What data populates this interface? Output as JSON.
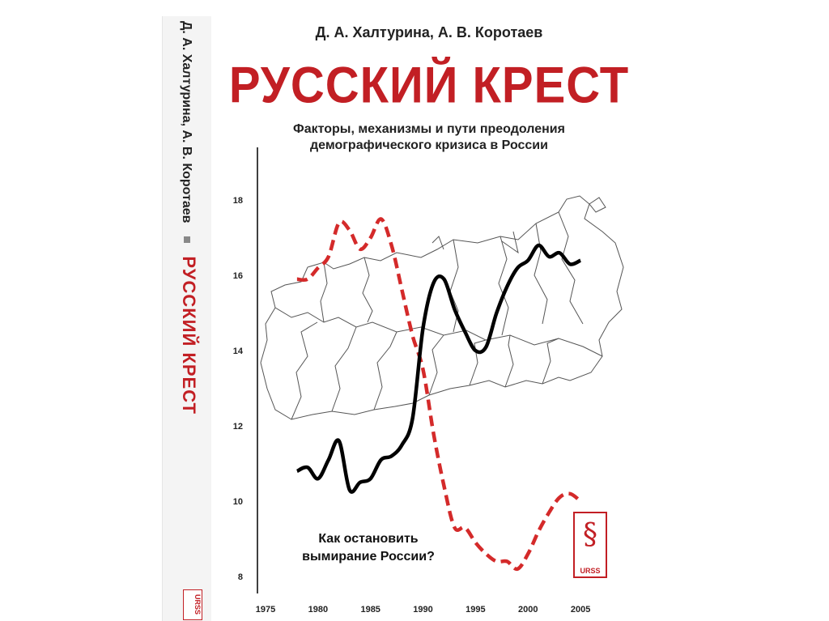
{
  "cover": {
    "authors": "Д. А. Халтурина, А. В. Коротаев",
    "title": "РУССКИЙ КРЕСТ",
    "subtitle_line1": "Факторы, механизмы и пути преодоления",
    "subtitle_line2": "демографического кризиса в России",
    "bottom_line1": "Как остановить",
    "bottom_line2": "вымирание России?",
    "publisher": "URSS",
    "publisher_glyph": "§"
  },
  "spine": {
    "authors": "Д. А. Халтурина, А. В. Коротаев",
    "title": "РУССКИЙ КРЕСТ",
    "publisher": "URSS"
  },
  "colors": {
    "title": "#c21f24",
    "dashed_series": "#d42a2a",
    "solid_series": "#000000",
    "map_outline": "#555555"
  },
  "chart_data": {
    "type": "line",
    "xlim": [
      1975,
      2008
    ],
    "ylim": [
      8,
      18.5
    ],
    "x_ticks": [
      1975,
      1980,
      1985,
      1990,
      1995,
      2000,
      2005
    ],
    "y_ticks": [
      8,
      10,
      12,
      14,
      16,
      18
    ],
    "series": [
      {
        "style": "dashed",
        "color": "#d42a2a",
        "x": [
          1978,
          1979,
          1980,
          1981,
          1982,
          1983,
          1984,
          1985,
          1986,
          1987,
          1988,
          1989,
          1990,
          1991,
          1992,
          1993,
          1994,
          1995,
          1996,
          1997,
          1998,
          1999,
          2000,
          2001,
          2002,
          2003,
          2004,
          2005
        ],
        "y": [
          15.9,
          15.9,
          16.2,
          16.5,
          17.4,
          17.2,
          16.7,
          17.0,
          17.5,
          16.8,
          15.6,
          14.4,
          13.5,
          11.8,
          10.4,
          9.3,
          9.3,
          8.9,
          8.6,
          8.4,
          8.4,
          8.2,
          8.6,
          9.2,
          9.7,
          10.1,
          10.2,
          10.0
        ]
      },
      {
        "style": "solid",
        "color": "#000000",
        "x": [
          1978,
          1979,
          1980,
          1981,
          1982,
          1983,
          1984,
          1985,
          1986,
          1987,
          1988,
          1989,
          1990,
          1991,
          1992,
          1993,
          1994,
          1995,
          1996,
          1997,
          1998,
          1999,
          2000,
          2001,
          2002,
          2003,
          2004,
          2005
        ],
        "y": [
          10.8,
          10.9,
          10.6,
          11.1,
          11.6,
          10.3,
          10.5,
          10.6,
          11.1,
          11.2,
          11.5,
          12.2,
          14.6,
          15.8,
          15.9,
          15.1,
          14.5,
          14.0,
          14.1,
          15.0,
          15.7,
          16.2,
          16.4,
          16.8,
          16.5,
          16.6,
          16.3,
          16.4
        ]
      }
    ]
  }
}
